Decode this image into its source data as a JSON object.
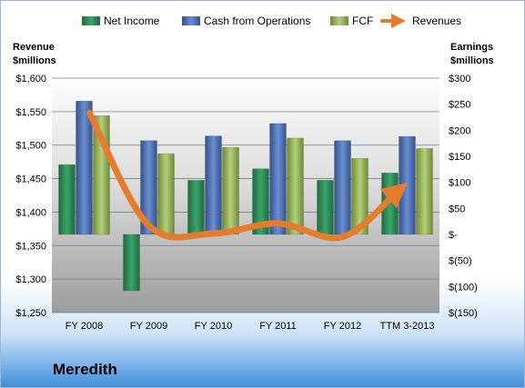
{
  "company": "Meredith",
  "chart_data": {
    "type": "bar",
    "categories": [
      "FY 2008",
      "FY 2009",
      "FY 2010",
      "FY 2011",
      "FY 2012",
      "TTM 3-2013"
    ],
    "series": [
      {
        "name": "Net Income",
        "axis": "right",
        "color": "#2E8B57",
        "values": [
          134,
          -108,
          104,
          126,
          104,
          118
        ]
      },
      {
        "name": "Cash from Operations",
        "axis": "right",
        "color": "#4A6FB5",
        "values": [
          256,
          180,
          189,
          213,
          180,
          188
        ]
      },
      {
        "name": "FCF",
        "axis": "right",
        "color": "#9BBB59",
        "values": [
          228,
          155,
          167,
          185,
          146,
          165
        ]
      },
      {
        "name": "Revenues",
        "axis": "left",
        "type": "line",
        "color": "#E57B2C",
        "values": [
          1548,
          1380,
          1368,
          1383,
          1363,
          1432
        ]
      }
    ],
    "left_axis": {
      "title_lines": [
        "Revenue",
        "$millions"
      ],
      "min": 1250,
      "max": 1600,
      "step": 50,
      "tick_labels": [
        "$1,250",
        "$1,300",
        "$1,350",
        "$1,400",
        "$1,450",
        "$1,500",
        "$1,550",
        "$1,600"
      ]
    },
    "right_axis": {
      "title_lines": [
        "Earnings",
        "$millions"
      ],
      "min": -150,
      "max": 300,
      "step": 50,
      "tick_labels": [
        "$(150)",
        "$(100)",
        "$(50)",
        "$-",
        "$50",
        "$100",
        "$150",
        "$200",
        "$250",
        "$300"
      ]
    },
    "legend_position": "top",
    "grid": true
  }
}
